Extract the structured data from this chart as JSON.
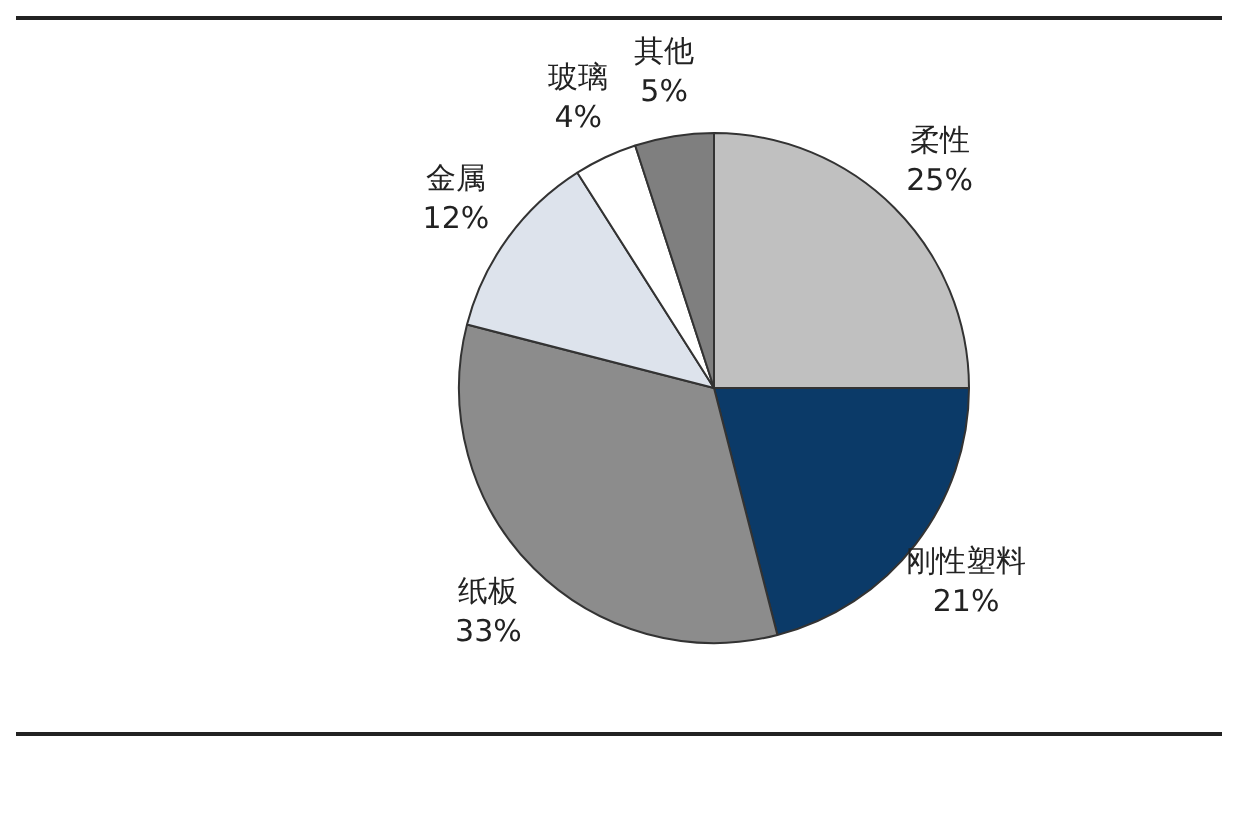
{
  "chart_data": {
    "type": "pie",
    "categories": [
      "柔性",
      "刚性塑料",
      "纸板",
      "金属",
      "玻璃",
      "其他"
    ],
    "values": [
      25,
      21,
      33,
      12,
      4,
      5
    ],
    "value_labels": [
      "25%",
      "21%",
      "33%",
      "12%",
      "4%",
      "5%"
    ],
    "colors": [
      "#c0c0c0",
      "#0b3a68",
      "#8c8c8c",
      "#dde3ec",
      "#ffffff",
      "#7f7f7f"
    ],
    "legend": false
  }
}
